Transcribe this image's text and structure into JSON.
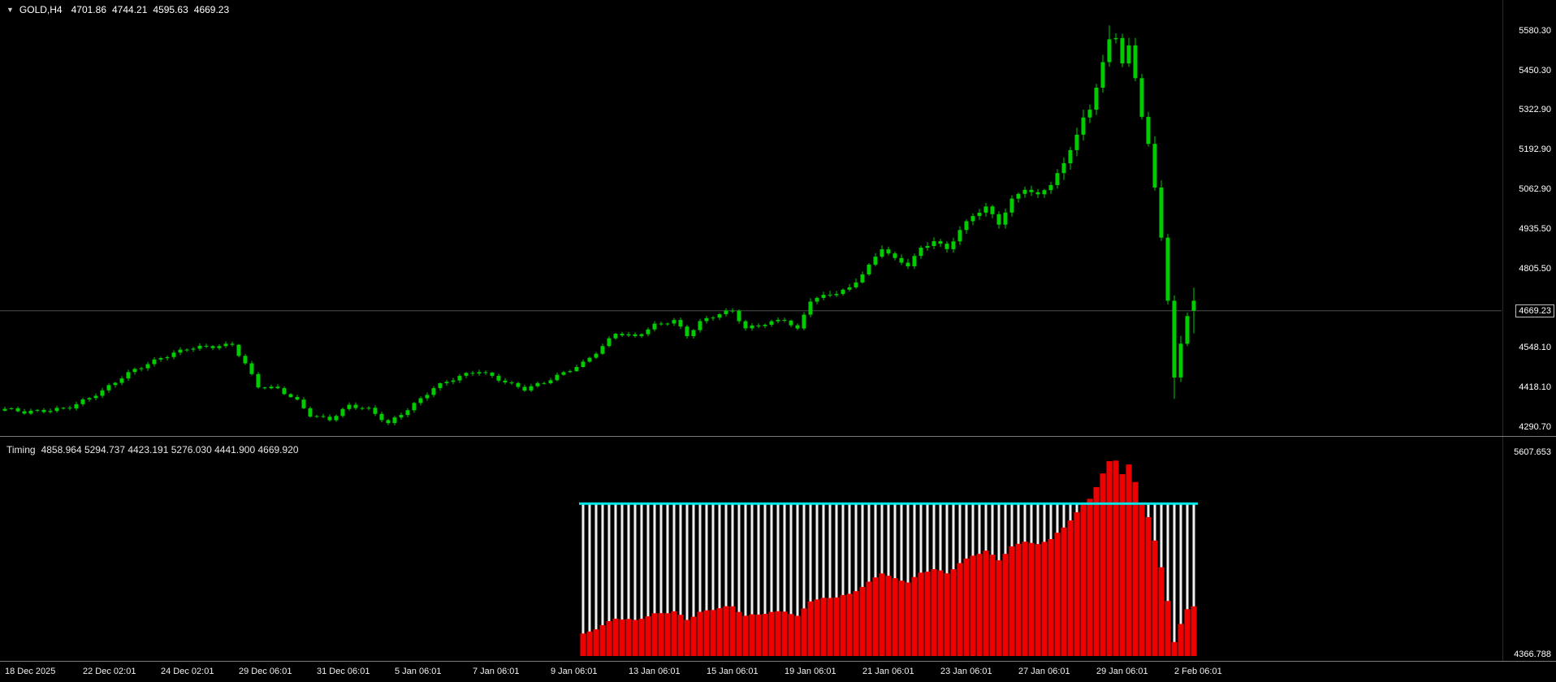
{
  "symbol_header": {
    "marker": "▼",
    "symbol": "GOLD,H4",
    "open": "4701.86",
    "high": "4744.21",
    "low": "4595.63",
    "close": "4669.23"
  },
  "indicator_header": {
    "name": "Timing",
    "values": "4858.964 5294.737 4423.191 5276.030 4441.900 4669.920"
  },
  "colors": {
    "background": "#000000",
    "candle": "#00cc00",
    "histogram_red": "#ee0000",
    "histogram_white": "#f0f0f0",
    "level_line_cyan": "#00e5e5",
    "text": "#ffffff",
    "separator": "#7d7d7d",
    "price_line": "#4d4d4d"
  },
  "chart_data": [
    {
      "type": "candlestick",
      "title": "GOLD,H4",
      "ylim": [
        4261.6,
        5680.9
      ],
      "y_ticks": [
        5580.3,
        5450.3,
        5322.9,
        5192.9,
        5062.9,
        4935.5,
        4805.5,
        4548.1,
        4418.1,
        4290.7
      ],
      "current_price": 4669.23,
      "bars_total": 184,
      "bar_spacing_px": 8,
      "first_bar_x": 6,
      "last_bar_ohlc": {
        "open": 4701.86,
        "high": 4744.21,
        "low": 4595.63,
        "close": 4669.23
      },
      "close_anchors": [
        [
          0,
          4350
        ],
        [
          3,
          4335
        ],
        [
          6,
          4342
        ],
        [
          10,
          4360
        ],
        [
          15,
          4405
        ],
        [
          20,
          4478
        ],
        [
          24,
          4520
        ],
        [
          28,
          4544
        ],
        [
          32,
          4550
        ],
        [
          35,
          4562
        ],
        [
          37,
          4500
        ],
        [
          39,
          4425
        ],
        [
          42,
          4412
        ],
        [
          45,
          4372
        ],
        [
          47,
          4330
        ],
        [
          50,
          4320
        ],
        [
          53,
          4362
        ],
        [
          56,
          4345
        ],
        [
          59,
          4300
        ],
        [
          62,
          4352
        ],
        [
          66,
          4420
        ],
        [
          70,
          4452
        ],
        [
          73,
          4472
        ],
        [
          76,
          4450
        ],
        [
          80,
          4415
        ],
        [
          83,
          4432
        ],
        [
          86,
          4465
        ],
        [
          89,
          4502
        ],
        [
          92,
          4556
        ],
        [
          94,
          4596
        ],
        [
          97,
          4580
        ],
        [
          100,
          4622
        ],
        [
          103,
          4642
        ],
        [
          105,
          4592
        ],
        [
          107,
          4632
        ],
        [
          110,
          4656
        ],
        [
          112,
          4666
        ],
        [
          114,
          4612
        ],
        [
          117,
          4632
        ],
        [
          120,
          4642
        ],
        [
          122,
          4604
        ],
        [
          124,
          4700
        ],
        [
          127,
          4722
        ],
        [
          130,
          4746
        ],
        [
          133,
          4816
        ],
        [
          135,
          4872
        ],
        [
          137,
          4832
        ],
        [
          139,
          4816
        ],
        [
          141,
          4872
        ],
        [
          143,
          4902
        ],
        [
          145,
          4872
        ],
        [
          147,
          4932
        ],
        [
          149,
          4976
        ],
        [
          151,
          5002
        ],
        [
          153,
          4952
        ],
        [
          155,
          5032
        ],
        [
          157,
          5072
        ],
        [
          159,
          5046
        ],
        [
          161,
          5082
        ],
        [
          163,
          5142
        ],
        [
          165,
          5242
        ],
        [
          166,
          5292
        ],
        [
          167,
          5322
        ],
        [
          168,
          5402
        ],
        [
          169,
          5482
        ],
        [
          170,
          5552
        ],
        [
          171,
          5562
        ],
        [
          172,
          5482
        ],
        [
          173,
          5532
        ],
        [
          174,
          5422
        ],
        [
          175,
          5302
        ],
        [
          176,
          5212
        ],
        [
          177,
          5062
        ],
        [
          178,
          4902
        ],
        [
          179,
          4702
        ],
        [
          180,
          4452
        ],
        [
          181,
          4562
        ],
        [
          182,
          4652
        ],
        [
          183,
          4669.23
        ]
      ],
      "x_ticks": [
        "18 Dec 2025",
        "22 Dec 02:01",
        "24 Dec 02:01",
        "29 Dec 06:01",
        "31 Dec 06:01",
        "5 Jan 06:01",
        "7 Jan 06:01",
        "9 Jan 06:01",
        "13 Jan 06:01",
        "15 Jan 06:01",
        "19 Jan 06:01",
        "21 Jan 06:01",
        "23 Jan 06:01",
        "27 Jan 06:01",
        "29 Jan 06:01",
        "2 Feb 06:01"
      ]
    },
    {
      "type": "bar",
      "name": "Timing",
      "ylim": [
        4337.1,
        5701.6
      ],
      "baseline": 4366.788,
      "level_line": 5294.737,
      "start_bar": 89,
      "end_bar": 183,
      "red_values_source": "close",
      "value_cap": 5600,
      "axis_labels": [
        5607.653,
        4366.788
      ]
    }
  ]
}
